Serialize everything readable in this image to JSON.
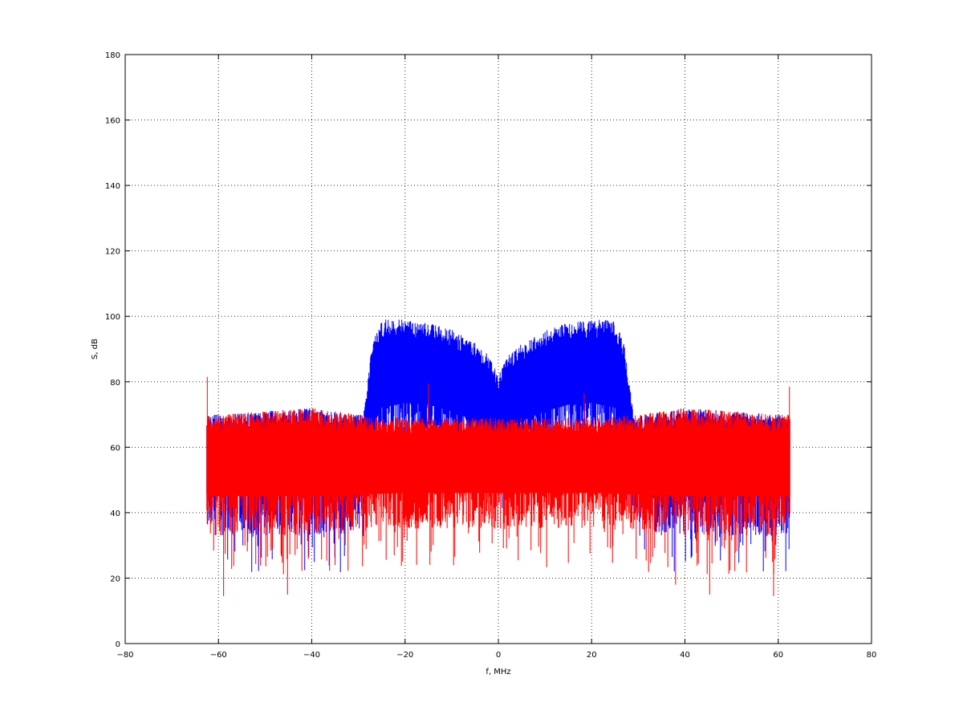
{
  "chart_data": {
    "type": "line",
    "title": "",
    "xlabel": "f, MHz",
    "ylabel": "S, dB",
    "xlim": [
      -80,
      80
    ],
    "ylim": [
      0,
      180
    ],
    "xticks": [
      -80,
      -60,
      -40,
      -20,
      0,
      20,
      40,
      60,
      80
    ],
    "yticks": [
      0,
      20,
      40,
      60,
      80,
      100,
      120,
      140,
      160,
      180
    ],
    "grid": true,
    "legend": "none",
    "series": [
      {
        "color": "#0000ff",
        "description_shape": "noise floor across full band, raised double-hump band between -30 and 30 MHz with a notch at 0",
        "x_range": [
          -62.5,
          62.5
        ],
        "envelope": {
          "x": [
            -62.5,
            -60,
            -50,
            -40,
            -32,
            -29,
            -27,
            -25,
            -20,
            -15,
            -10,
            -5,
            -2,
            0,
            2,
            5,
            10,
            15,
            20,
            25,
            27,
            29,
            32,
            40,
            50,
            60,
            62.5
          ],
          "upper": [
            70,
            70,
            71,
            72,
            70,
            70,
            92,
            99,
            99,
            98,
            96,
            92,
            88,
            82,
            88,
            92,
            96,
            98,
            99,
            99,
            92,
            70,
            70,
            72,
            71,
            70,
            70
          ],
          "mean": [
            55,
            55,
            55,
            55,
            55,
            57,
            75,
            82,
            83,
            82,
            80,
            76,
            72,
            68,
            72,
            76,
            80,
            82,
            83,
            82,
            75,
            57,
            55,
            55,
            55,
            55,
            55
          ],
          "lower": [
            33,
            33,
            33,
            33,
            33,
            40,
            55,
            60,
            62,
            62,
            60,
            58,
            55,
            52,
            55,
            58,
            60,
            62,
            62,
            60,
            55,
            40,
            33,
            33,
            33,
            33,
            33
          ]
        }
      },
      {
        "color": "#ff0000",
        "description_shape": "flat noise across full band",
        "x_range": [
          -62.5,
          62.5
        ],
        "envelope": {
          "x": [
            -62.5,
            -60,
            -50,
            -40,
            -30,
            -20,
            -10,
            0,
            10,
            20,
            30,
            40,
            50,
            60,
            62.5
          ],
          "upper": [
            70,
            70,
            71,
            72,
            70,
            69,
            69,
            69,
            69,
            69,
            70,
            72,
            71,
            70,
            70
          ],
          "mean": [
            55,
            55,
            55,
            55,
            55,
            55,
            55,
            55,
            55,
            55,
            55,
            55,
            55,
            55,
            55
          ],
          "lower": [
            33,
            33,
            33,
            33,
            34,
            35,
            35,
            35,
            35,
            35,
            34,
            33,
            33,
            33,
            33
          ]
        },
        "spikes": [
          {
            "x": -62.4,
            "y": 81.5
          },
          {
            "x": 62.4,
            "y": 78.5
          },
          {
            "x": -15.0,
            "y": 79.5
          },
          {
            "x": 18.4,
            "y": 76.5
          },
          {
            "x": -58.9,
            "y": 14.5
          },
          {
            "x": 59.0,
            "y": 14.5
          },
          {
            "x": -45.2,
            "y": 15.0
          },
          {
            "x": 45.3,
            "y": 15.0
          },
          {
            "x": -35.0,
            "y": 24.0
          },
          {
            "x": 38.0,
            "y": 18.0
          }
        ]
      }
    ]
  }
}
